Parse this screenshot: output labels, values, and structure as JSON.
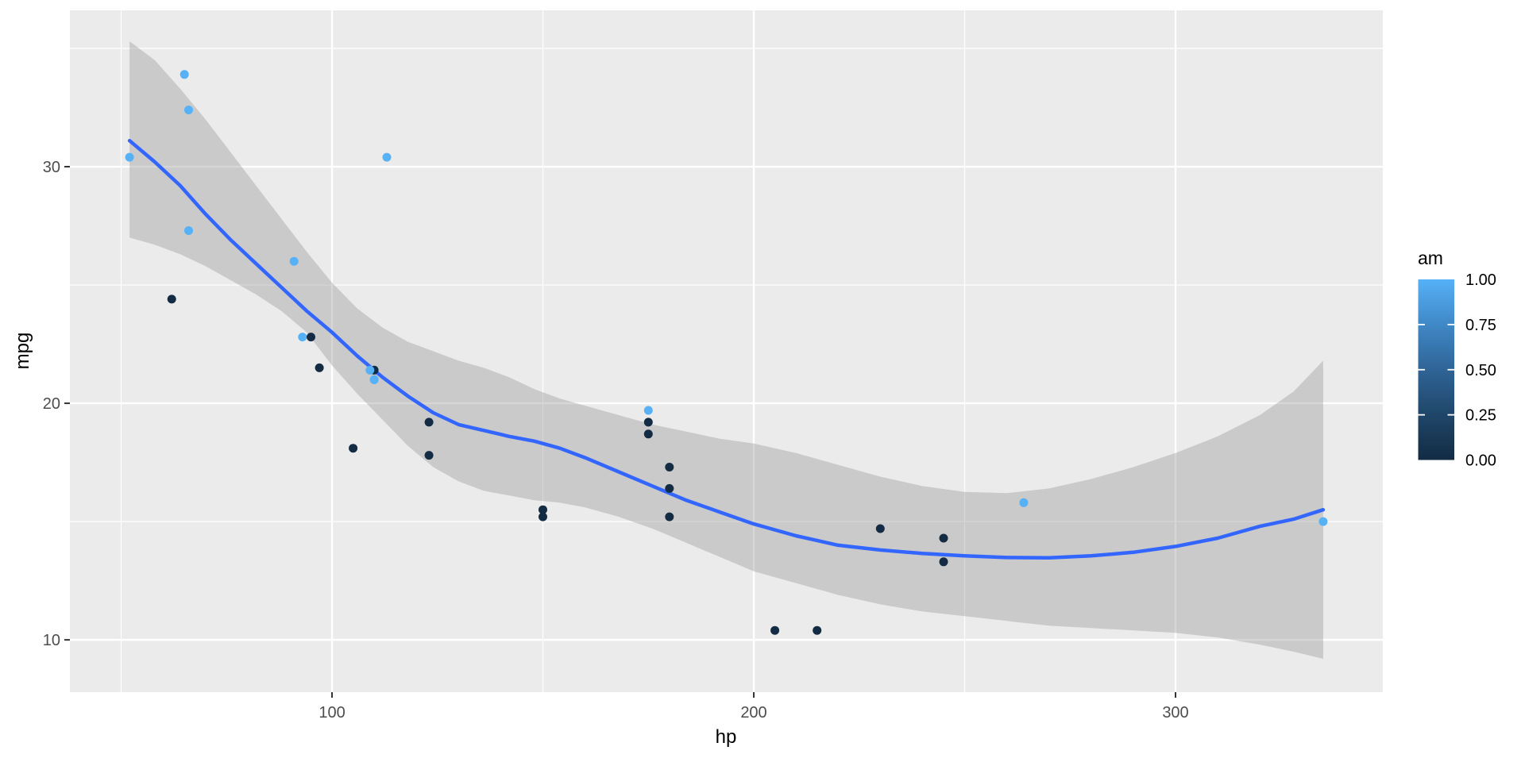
{
  "chart_data": {
    "type": "scatter",
    "title": "",
    "xlabel": "hp",
    "ylabel": "mpg",
    "x_ticks": [
      {
        "value": 100,
        "label": "100"
      },
      {
        "value": 200,
        "label": "200"
      },
      {
        "value": 300,
        "label": "300"
      }
    ],
    "y_ticks": [
      {
        "value": 10,
        "label": "10"
      },
      {
        "value": 20,
        "label": "20"
      },
      {
        "value": 30,
        "label": "30"
      }
    ],
    "x_minor": [
      50,
      150,
      250
    ],
    "y_minor": [
      15,
      25,
      35
    ],
    "xlim": [
      37.85,
      349.15
    ],
    "ylim": [
      7.79,
      36.61
    ],
    "grid": true,
    "legend": {
      "title": "am",
      "position": "right",
      "labels": [
        {
          "value": 1.0,
          "label": "1.00"
        },
        {
          "value": 0.75,
          "label": "0.75"
        },
        {
          "value": 0.5,
          "label": "0.50"
        },
        {
          "value": 0.25,
          "label": "0.25"
        },
        {
          "value": 0.0,
          "label": "0.00"
        }
      ],
      "gradient_stops_top_to_bottom": [
        "#56B1F7",
        "#4088C7",
        "#2F6496",
        "#1F4669",
        "#132B43"
      ]
    },
    "colors": {
      "background": "#FFFFFF",
      "panel": "#EBEBEB",
      "grid": "#FFFFFF",
      "smooth_line": "#3366FF",
      "ribbon": "rgba(153,153,153,0.4)",
      "am_low": "#132B43",
      "am_high": "#56B1F7",
      "axis_text": "#4D4D4D",
      "axis_title": "#000000",
      "tick_mark": "#333333",
      "legend_text": "#000000"
    },
    "points": [
      {
        "hp": 110,
        "mpg": 21.0,
        "am": 1
      },
      {
        "hp": 110,
        "mpg": 21.0,
        "am": 1
      },
      {
        "hp": 93,
        "mpg": 22.8,
        "am": 1
      },
      {
        "hp": 110,
        "mpg": 21.4,
        "am": 0
      },
      {
        "hp": 175,
        "mpg": 18.7,
        "am": 0
      },
      {
        "hp": 105,
        "mpg": 18.1,
        "am": 0
      },
      {
        "hp": 245,
        "mpg": 14.3,
        "am": 0
      },
      {
        "hp": 62,
        "mpg": 24.4,
        "am": 0
      },
      {
        "hp": 95,
        "mpg": 22.8,
        "am": 0
      },
      {
        "hp": 123,
        "mpg": 19.2,
        "am": 0
      },
      {
        "hp": 123,
        "mpg": 17.8,
        "am": 0
      },
      {
        "hp": 180,
        "mpg": 16.4,
        "am": 0
      },
      {
        "hp": 180,
        "mpg": 17.3,
        "am": 0
      },
      {
        "hp": 180,
        "mpg": 15.2,
        "am": 0
      },
      {
        "hp": 205,
        "mpg": 10.4,
        "am": 0
      },
      {
        "hp": 215,
        "mpg": 10.4,
        "am": 0
      },
      {
        "hp": 230,
        "mpg": 14.7,
        "am": 0
      },
      {
        "hp": 66,
        "mpg": 32.4,
        "am": 1
      },
      {
        "hp": 52,
        "mpg": 30.4,
        "am": 1
      },
      {
        "hp": 65,
        "mpg": 33.9,
        "am": 1
      },
      {
        "hp": 97,
        "mpg": 21.5,
        "am": 0
      },
      {
        "hp": 150,
        "mpg": 15.5,
        "am": 0
      },
      {
        "hp": 150,
        "mpg": 15.2,
        "am": 0
      },
      {
        "hp": 245,
        "mpg": 13.3,
        "am": 0
      },
      {
        "hp": 175,
        "mpg": 19.2,
        "am": 0
      },
      {
        "hp": 66,
        "mpg": 27.3,
        "am": 1
      },
      {
        "hp": 91,
        "mpg": 26.0,
        "am": 1
      },
      {
        "hp": 113,
        "mpg": 30.4,
        "am": 1
      },
      {
        "hp": 264,
        "mpg": 15.8,
        "am": 1
      },
      {
        "hp": 175,
        "mpg": 19.7,
        "am": 1
      },
      {
        "hp": 335,
        "mpg": 15.0,
        "am": 1
      },
      {
        "hp": 109,
        "mpg": 21.4,
        "am": 1
      }
    ],
    "smooth_line": [
      [
        52,
        31.1
      ],
      [
        58,
        30.2
      ],
      [
        64,
        29.2
      ],
      [
        70,
        28.0
      ],
      [
        76,
        26.9
      ],
      [
        82,
        25.9
      ],
      [
        88,
        24.9
      ],
      [
        94,
        23.9
      ],
      [
        100,
        23.0
      ],
      [
        106,
        22.0
      ],
      [
        112,
        21.1
      ],
      [
        118,
        20.3
      ],
      [
        124,
        19.6
      ],
      [
        130,
        19.1
      ],
      [
        136,
        18.85
      ],
      [
        142,
        18.6
      ],
      [
        148,
        18.4
      ],
      [
        154,
        18.1
      ],
      [
        160,
        17.7
      ],
      [
        168,
        17.1
      ],
      [
        176,
        16.5
      ],
      [
        184,
        15.9
      ],
      [
        192,
        15.4
      ],
      [
        200,
        14.9
      ],
      [
        210,
        14.4
      ],
      [
        220,
        14.0
      ],
      [
        230,
        13.8
      ],
      [
        240,
        13.65
      ],
      [
        250,
        13.55
      ],
      [
        260,
        13.48
      ],
      [
        270,
        13.47
      ],
      [
        280,
        13.55
      ],
      [
        290,
        13.7
      ],
      [
        300,
        13.95
      ],
      [
        310,
        14.3
      ],
      [
        320,
        14.8
      ],
      [
        328,
        15.1
      ],
      [
        335,
        15.5
      ]
    ],
    "ribbon_upper": [
      [
        52,
        35.3
      ],
      [
        58,
        34.5
      ],
      [
        64,
        33.3
      ],
      [
        70,
        32.0
      ],
      [
        76,
        30.6
      ],
      [
        82,
        29.2
      ],
      [
        88,
        27.8
      ],
      [
        94,
        26.4
      ],
      [
        100,
        25.1
      ],
      [
        106,
        24.0
      ],
      [
        112,
        23.2
      ],
      [
        118,
        22.6
      ],
      [
        124,
        22.2
      ],
      [
        130,
        21.8
      ],
      [
        136,
        21.5
      ],
      [
        142,
        21.1
      ],
      [
        148,
        20.6
      ],
      [
        154,
        20.2
      ],
      [
        160,
        19.9
      ],
      [
        168,
        19.5
      ],
      [
        176,
        19.1
      ],
      [
        184,
        18.8
      ],
      [
        192,
        18.5
      ],
      [
        200,
        18.3
      ],
      [
        210,
        17.9
      ],
      [
        220,
        17.4
      ],
      [
        230,
        16.9
      ],
      [
        240,
        16.5
      ],
      [
        250,
        16.25
      ],
      [
        260,
        16.2
      ],
      [
        270,
        16.4
      ],
      [
        280,
        16.8
      ],
      [
        290,
        17.3
      ],
      [
        300,
        17.9
      ],
      [
        310,
        18.6
      ],
      [
        320,
        19.5
      ],
      [
        328,
        20.5
      ],
      [
        335,
        21.8
      ]
    ],
    "ribbon_lower": [
      [
        52,
        27.0
      ],
      [
        58,
        26.7
      ],
      [
        64,
        26.3
      ],
      [
        70,
        25.8
      ],
      [
        76,
        25.2
      ],
      [
        82,
        24.6
      ],
      [
        88,
        23.9
      ],
      [
        94,
        23.0
      ],
      [
        100,
        21.6
      ],
      [
        106,
        20.4
      ],
      [
        112,
        19.3
      ],
      [
        118,
        18.2
      ],
      [
        124,
        17.3
      ],
      [
        130,
        16.7
      ],
      [
        136,
        16.3
      ],
      [
        142,
        16.1
      ],
      [
        148,
        15.9
      ],
      [
        154,
        15.8
      ],
      [
        160,
        15.6
      ],
      [
        168,
        15.2
      ],
      [
        176,
        14.7
      ],
      [
        184,
        14.1
      ],
      [
        192,
        13.5
      ],
      [
        200,
        12.9
      ],
      [
        210,
        12.4
      ],
      [
        220,
        11.9
      ],
      [
        230,
        11.5
      ],
      [
        240,
        11.2
      ],
      [
        250,
        11.0
      ],
      [
        260,
        10.8
      ],
      [
        270,
        10.6
      ],
      [
        280,
        10.5
      ],
      [
        290,
        10.4
      ],
      [
        300,
        10.3
      ],
      [
        310,
        10.1
      ],
      [
        320,
        9.8
      ],
      [
        328,
        9.5
      ],
      [
        335,
        9.2
      ]
    ]
  }
}
